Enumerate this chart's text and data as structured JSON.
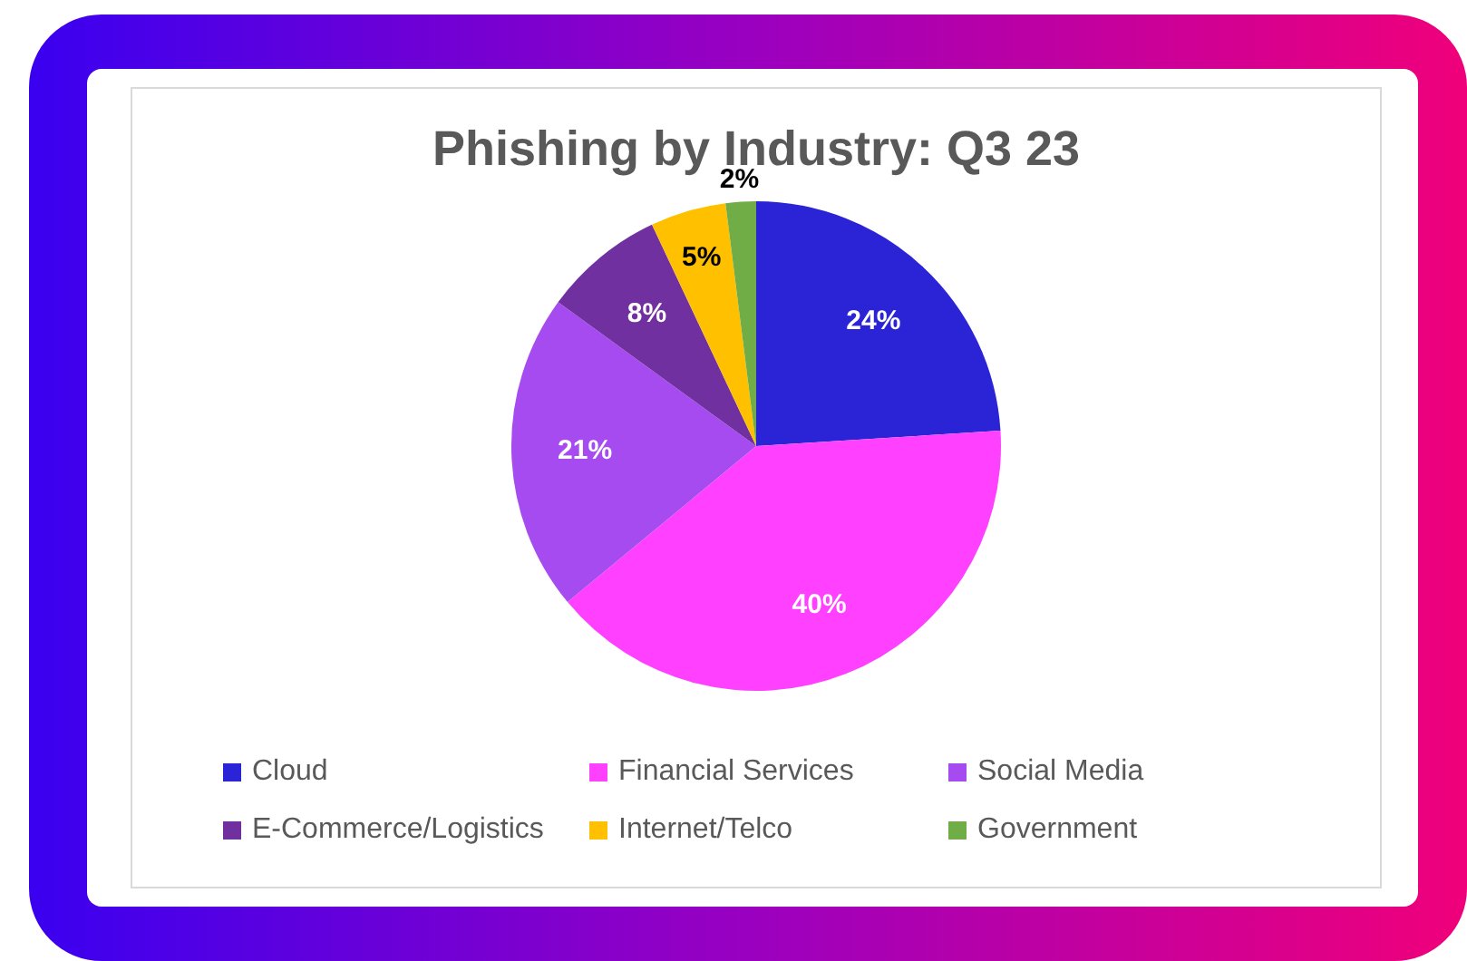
{
  "chart_data": {
    "type": "pie",
    "title": "Phishing by Industry: Q3 23",
    "categories": [
      "Cloud",
      "Financial Services",
      "Social Media",
      "E-Commerce/Logistics",
      "Internet/Telco",
      "Government"
    ],
    "values": [
      24,
      40,
      21,
      8,
      5,
      2
    ],
    "colors": [
      "#2b24d6",
      "#ff40ff",
      "#a64bf0",
      "#7030a0",
      "#ffc000",
      "#70ad47"
    ],
    "value_labels": [
      "24%",
      "40%",
      "21%",
      "8%",
      "5%",
      "2%"
    ],
    "legend": "bottom"
  }
}
